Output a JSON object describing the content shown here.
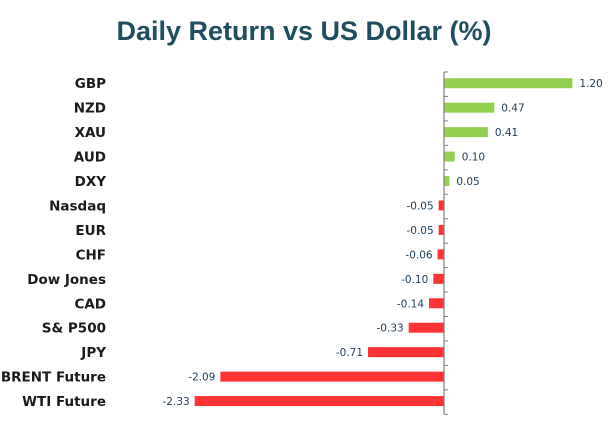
{
  "chart_data": {
    "type": "bar",
    "orientation": "horizontal",
    "title": "Daily Return vs US Dollar (%)",
    "categories": [
      "GBP",
      "NZD",
      "XAU",
      "AUD",
      "DXY",
      "Nasdaq",
      "EUR",
      "CHF",
      "Dow Jones",
      "CAD",
      "S& P500",
      "JPY",
      "BRENT Future",
      "WTI Future"
    ],
    "values": [
      1.2,
      0.47,
      0.41,
      0.1,
      0.05,
      -0.05,
      -0.05,
      -0.06,
      -0.1,
      -0.14,
      -0.33,
      -0.71,
      -2.09,
      -2.33
    ],
    "value_labels": [
      "1.20",
      "0.47",
      "0.41",
      "0.10",
      "0.05",
      "-0.05",
      "-0.05",
      "-0.06",
      "-0.10",
      "-0.14",
      "-0.33",
      "-0.71",
      "-2.09",
      "-2.33"
    ],
    "positive_color": "#92d050",
    "negative_color": "#ff3333",
    "axis_color": "#7f7f7f",
    "grid": false,
    "legend": "none"
  }
}
